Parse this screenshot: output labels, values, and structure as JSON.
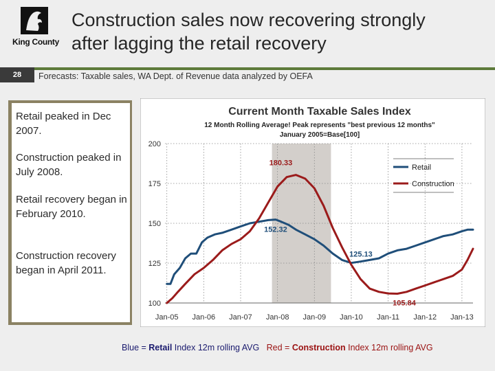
{
  "logo": {
    "text": "King County"
  },
  "slide": {
    "number": "28",
    "title_line1": "Construction sales now recovering strongly",
    "title_line2": "after lagging the retail recovery",
    "source": "Forecasts:  Taxable sales, WA Dept. of Revenue data analyzed by OEFA"
  },
  "bullets": [
    "Retail peaked in Dec 2007.",
    "Construction peaked in July 2008.",
    "Retail recovery began in February 2010.",
    "Construction recovery began in April 2011."
  ],
  "caption": {
    "blue_prefix": "Blue = ",
    "blue_bold": "Retail",
    "blue_suffix": " Index 12m rolling AVG",
    "red_prefix": "Red = ",
    "red_bold": "Construction",
    "red_suffix": " Index 12m rolling AVG"
  },
  "colors": {
    "retail": "#1f4e79",
    "construction": "#9b1b1b",
    "band": "#d3cfcb"
  },
  "chart_data": {
    "type": "line",
    "title": "Current Month Taxable Sales Index",
    "subtitle_line1": "12 Month Rolling Average! Peak represents \"best previous 12 months\"",
    "subtitle_line2": "January 2005=Base[100]",
    "xlabel": "",
    "ylabel": "",
    "ylim": [
      100,
      200
    ],
    "yticks": [
      100,
      125,
      150,
      175,
      200
    ],
    "x_ticks": [
      2005,
      2006,
      2007,
      2008,
      2009,
      2010,
      2011,
      2012,
      2013
    ],
    "x_tick_labels": [
      "Jan-05",
      "Jan-06",
      "Jan-07",
      "Jan-08",
      "Jan-09",
      "Jan-10",
      "Jan-11",
      "Jan-12",
      "Jan-13"
    ],
    "xlim": [
      2004.95,
      2013.3
    ],
    "shaded_band": [
      2007.85,
      2009.45
    ],
    "legend": [
      "Retail",
      "Construction"
    ],
    "annotations": [
      {
        "text": "180.33",
        "x": 2008.5,
        "y": 180.33,
        "series": "Construction"
      },
      {
        "text": "152.32",
        "x": 2007.95,
        "y": 152.32,
        "series": "Retail"
      },
      {
        "text": "125.13",
        "x": 2010.0,
        "y": 125.13,
        "series": "Retail"
      },
      {
        "text": "105.84",
        "x": 2011.25,
        "y": 105.84,
        "series": "Construction"
      }
    ],
    "series": [
      {
        "name": "Retail",
        "x": [
          2005.0,
          2005.1,
          2005.2,
          2005.35,
          2005.5,
          2005.65,
          2005.8,
          2005.95,
          2006.1,
          2006.3,
          2006.5,
          2006.75,
          2007.0,
          2007.25,
          2007.5,
          2007.75,
          2007.95,
          2008.1,
          2008.3,
          2008.5,
          2008.75,
          2009.0,
          2009.25,
          2009.5,
          2009.75,
          2010.0,
          2010.25,
          2010.5,
          2010.75,
          2011.0,
          2011.25,
          2011.5,
          2011.75,
          2012.0,
          2012.25,
          2012.5,
          2012.75,
          2013.0,
          2013.15,
          2013.3
        ],
        "values": [
          112,
          112,
          118,
          122,
          128,
          131,
          131,
          138,
          141,
          143,
          144,
          146,
          148,
          150,
          151,
          152,
          152.32,
          151,
          149,
          146,
          143,
          140,
          136,
          131,
          127,
          125.13,
          126,
          127,
          128,
          131,
          133,
          134,
          136,
          138,
          140,
          142,
          143,
          145,
          146,
          146
        ]
      },
      {
        "name": "Construction",
        "x": [
          2005.0,
          2005.15,
          2005.3,
          2005.5,
          2005.75,
          2006.0,
          2006.25,
          2006.5,
          2006.75,
          2007.0,
          2007.25,
          2007.5,
          2007.75,
          2008.0,
          2008.25,
          2008.5,
          2008.75,
          2009.0,
          2009.25,
          2009.5,
          2009.75,
          2010.0,
          2010.25,
          2010.5,
          2010.75,
          2011.0,
          2011.25,
          2011.5,
          2011.75,
          2012.0,
          2012.25,
          2012.5,
          2012.75,
          2013.0,
          2013.15,
          2013.3
        ],
        "values": [
          100,
          103,
          107,
          112,
          118,
          122,
          127,
          133,
          137,
          140,
          145,
          153,
          163,
          173,
          179,
          180.33,
          178,
          172,
          161,
          147,
          135,
          124,
          115,
          109,
          107,
          106,
          105.84,
          107,
          109,
          111,
          113,
          115,
          117,
          121,
          127,
          134
        ]
      }
    ]
  }
}
